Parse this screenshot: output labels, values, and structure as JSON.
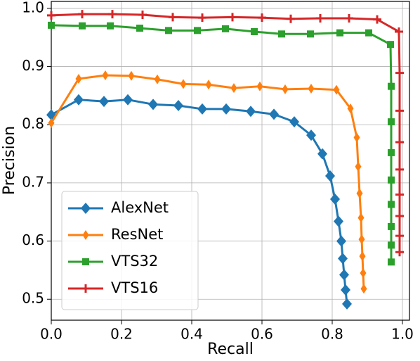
{
  "chart_data": {
    "type": "line",
    "xlabel": "Recall",
    "ylabel": "Precision",
    "xlim": [
      0,
      1.02
    ],
    "ylim": [
      0.464,
      1.012
    ],
    "xticks": [
      {
        "value": 0,
        "label": "0.0"
      },
      0.2,
      0.4,
      0.6,
      0.8,
      {
        "value": 1,
        "label": "1.0"
      }
    ],
    "yticks": [
      0.5,
      0.6,
      0.7,
      0.8,
      0.9,
      {
        "value": 1,
        "label": "1.0"
      }
    ],
    "grid": true,
    "legend": "lower left",
    "series": [
      {
        "name": "AlexNet",
        "color": "#1f77b4",
        "marker": "D",
        "x": [
          0,
          0.078,
          0.15,
          0.218,
          0.29,
          0.362,
          0.43,
          0.498,
          0.568,
          0.634,
          0.692,
          0.74,
          0.772,
          0.794,
          0.808,
          0.818,
          0.826,
          0.83,
          0.834,
          0.838,
          0.842
        ],
        "values": [
          0.817,
          0.843,
          0.84,
          0.843,
          0.835,
          0.833,
          0.827,
          0.827,
          0.823,
          0.818,
          0.805,
          0.782,
          0.75,
          0.712,
          0.672,
          0.634,
          0.6,
          0.57,
          0.542,
          0.516,
          0.492
        ]
      },
      {
        "name": "ResNet",
        "color": "#ff7f0e",
        "marker": "d",
        "x": [
          0,
          0.078,
          0.154,
          0.228,
          0.302,
          0.376,
          0.448,
          0.52,
          0.594,
          0.666,
          0.74,
          0.812,
          0.852,
          0.87,
          0.874,
          0.878,
          0.882,
          0.884,
          0.886,
          0.888,
          0.89
        ],
        "values": [
          0.803,
          0.879,
          0.885,
          0.884,
          0.878,
          0.87,
          0.869,
          0.863,
          0.866,
          0.861,
          0.862,
          0.86,
          0.828,
          0.778,
          0.728,
          0.682,
          0.64,
          0.603,
          0.574,
          0.545,
          0.518
        ]
      },
      {
        "name": "VTS32",
        "color": "#2ca02c",
        "marker": "s",
        "x": [
          0,
          0.088,
          0.168,
          0.252,
          0.334,
          0.416,
          0.496,
          0.578,
          0.656,
          0.738,
          0.822,
          0.904,
          0.966,
          0.968,
          0.968,
          0.968,
          0.968,
          0.968,
          0.968,
          0.968,
          0.968
        ],
        "values": [
          0.971,
          0.97,
          0.97,
          0.966,
          0.962,
          0.962,
          0.965,
          0.96,
          0.956,
          0.956,
          0.958,
          0.958,
          0.938,
          0.866,
          0.805,
          0.752,
          0.705,
          0.663,
          0.625,
          0.593,
          0.564
        ]
      },
      {
        "name": "VTS16",
        "color": "#d62728",
        "marker": "+",
        "x": [
          0,
          0.088,
          0.174,
          0.26,
          0.346,
          0.43,
          0.516,
          0.6,
          0.682,
          0.766,
          0.848,
          0.928,
          0.99,
          0.992,
          0.992,
          0.992,
          0.992,
          0.992,
          0.992,
          0.992,
          0.992
        ],
        "values": [
          0.988,
          0.99,
          0.99,
          0.989,
          0.985,
          0.984,
          0.985,
          0.984,
          0.982,
          0.983,
          0.983,
          0.981,
          0.96,
          0.889,
          0.824,
          0.77,
          0.723,
          0.68,
          0.643,
          0.609,
          0.581
        ]
      }
    ]
  }
}
